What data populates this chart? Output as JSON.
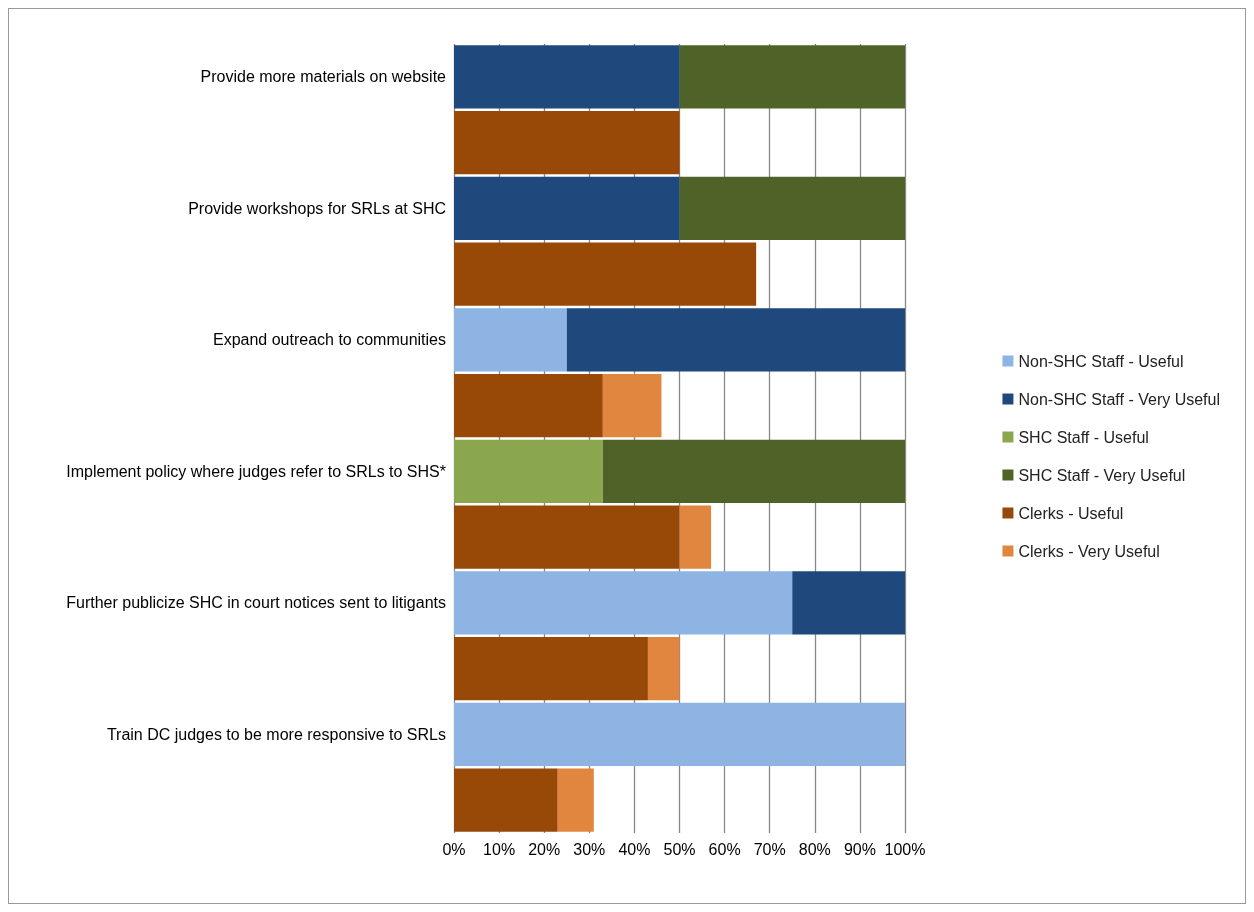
{
  "chart_data": {
    "type": "bar",
    "orientation": "horizontal",
    "stacked": true,
    "categories": [
      "Provide more materials on website",
      null,
      "Provide workshops for SRLs at SHC",
      null,
      "Expand outreach to communities",
      null,
      "Implement policy where judges refer to SRLs to SHS*",
      null,
      "Further publicize SHC in court notices sent to litigants",
      null,
      "Train DC judges to be more responsive to SRLs",
      null
    ],
    "series": [
      {
        "name": "Non-SHC Staff - Useful",
        "color": "#8eb4e3",
        "values": [
          null,
          null,
          null,
          null,
          25,
          null,
          null,
          null,
          75,
          null,
          100,
          null
        ]
      },
      {
        "name": "Non-SHC Staff - Very Useful",
        "color": "#1f497d",
        "values": [
          50,
          null,
          50,
          null,
          75,
          null,
          null,
          null,
          25,
          null,
          null,
          null
        ]
      },
      {
        "name": "SHC Staff - Useful",
        "color": "#8aa64e",
        "values": [
          null,
          null,
          null,
          null,
          null,
          null,
          33,
          null,
          null,
          null,
          null,
          null
        ]
      },
      {
        "name": "SHC Staff - Very Useful",
        "color": "#4f6228",
        "values": [
          50,
          null,
          50,
          null,
          null,
          null,
          67,
          null,
          null,
          null,
          null,
          null
        ]
      },
      {
        "name": "Clerks - Useful",
        "color": "#984807",
        "values": [
          null,
          50,
          null,
          67,
          null,
          33,
          null,
          50,
          null,
          43,
          null,
          23
        ]
      },
      {
        "name": "Clerks - Very Useful",
        "color": "#e0863f",
        "values": [
          null,
          null,
          null,
          null,
          null,
          13,
          null,
          7,
          null,
          7,
          null,
          8
        ]
      }
    ],
    "xlim": [
      0,
      100
    ],
    "xticks": [
      {
        "value": 0,
        "label": "0%"
      },
      {
        "value": 10,
        "label": "10%"
      },
      {
        "value": 20,
        "label": "20%"
      },
      {
        "value": 30,
        "label": "30%"
      },
      {
        "value": 40,
        "label": "40%"
      },
      {
        "value": 50,
        "label": "50%"
      },
      {
        "value": 60,
        "label": "60%"
      },
      {
        "value": 70,
        "label": "70%"
      },
      {
        "value": 80,
        "label": "80%"
      },
      {
        "value": 90,
        "label": "90%"
      },
      {
        "value": 100,
        "label": "100%"
      }
    ],
    "grid": "x",
    "legend": "right"
  }
}
